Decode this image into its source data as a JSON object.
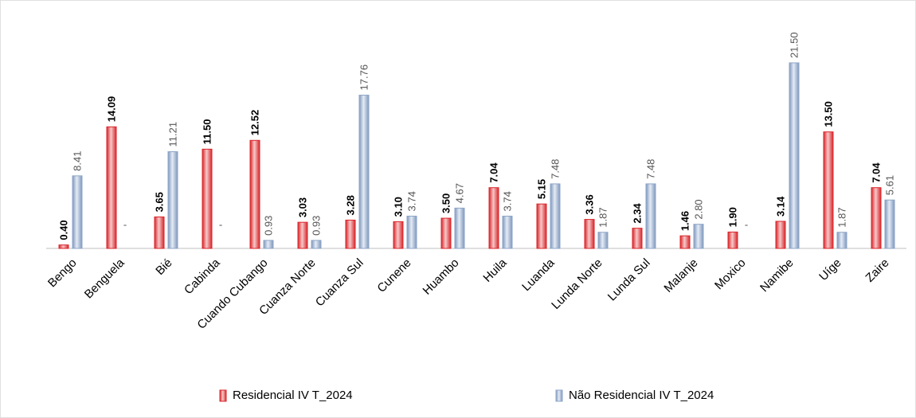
{
  "chart_data": {
    "type": "bar",
    "categories": [
      "Bengo",
      "Benguela",
      "Bié",
      "Cabinda",
      "Cuando Cubango",
      "Cuanza Norte",
      "Cuanza Sul",
      "Cunene",
      "Huambo",
      "Huila",
      "Luanda",
      "Lunda Norte",
      "Lunda Sul",
      "Malanje",
      "Moxico",
      "Namibe",
      "Uíge",
      "Zaire"
    ],
    "series": [
      {
        "name": "Residencial IV T_2024",
        "color": "#d9262b",
        "values": [
          0.4,
          14.09,
          3.65,
          11.5,
          12.52,
          3.03,
          3.28,
          3.1,
          3.5,
          7.04,
          5.15,
          3.36,
          2.34,
          1.46,
          1.9,
          3.14,
          13.5,
          7.04
        ],
        "value_labels": [
          "0.40",
          "14.09",
          "3.65",
          "11.50",
          "12.52",
          "3.03",
          "3.28",
          "3.10",
          "3.50",
          "7.04",
          "5.15",
          "3.36",
          "2.34",
          "1.46",
          "1.90",
          "3.14",
          "13.50",
          "7.04"
        ]
      },
      {
        "name": "Não Residencial IV T_2024",
        "color": "#8ea6c8",
        "values": [
          8.41,
          null,
          11.21,
          null,
          0.93,
          0.93,
          17.76,
          3.74,
          4.67,
          3.74,
          7.48,
          1.87,
          7.48,
          2.8,
          null,
          21.5,
          1.87,
          5.61
        ],
        "value_labels": [
          "8.41",
          "-",
          "11.21",
          "-",
          "0.93",
          "0.93",
          "17.76",
          "3.74",
          "4.67",
          "3.74",
          "7.48",
          "1.87",
          "7.48",
          "2.80",
          "-",
          "21.50",
          "1.87",
          "5.61"
        ]
      }
    ],
    "ylim": [
      0,
      25
    ]
  }
}
